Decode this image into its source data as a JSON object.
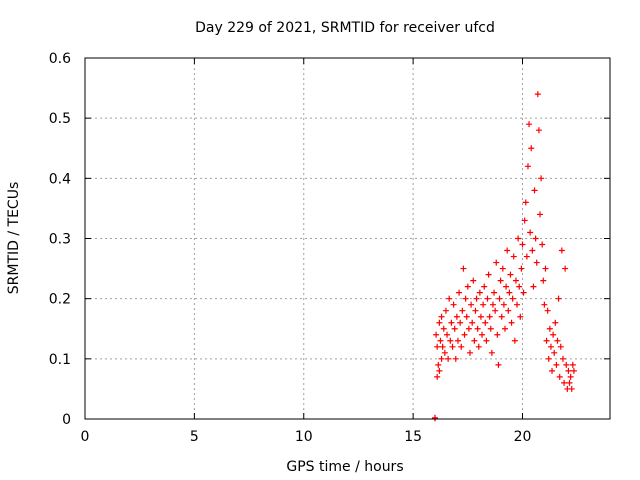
{
  "chart_data": {
    "type": "scatter",
    "title": "Day 229 of 2021, SRMTID for receiver ufcd",
    "xlabel": "GPS time / hours",
    "ylabel": "SRMTID / TECUs",
    "xlim": [
      0,
      24
    ],
    "ylim": [
      0,
      0.6
    ],
    "grid": true,
    "marker": "+",
    "x_ticks": [
      0,
      5,
      10,
      15,
      20
    ],
    "x_tick_labels": [
      "0",
      "5",
      "10",
      "15",
      "20"
    ],
    "y_ticks": [
      0,
      0.1,
      0.2,
      0.3,
      0.4,
      0.5,
      0.6
    ],
    "y_tick_labels": [
      "0",
      "0.1",
      "0.2",
      "0.3",
      "0.4",
      "0.5",
      "0.6"
    ],
    "series": [
      {
        "name": "SRMTID",
        "color": "#ff0000",
        "x": [
          16.0,
          16.0,
          16.05,
          16.1,
          16.1,
          16.15,
          16.2,
          16.2,
          16.25,
          16.3,
          16.3,
          16.35,
          16.4,
          16.45,
          16.5,
          16.55,
          16.6,
          16.65,
          16.7,
          16.75,
          16.8,
          16.85,
          16.9,
          16.95,
          17.0,
          17.05,
          17.1,
          17.15,
          17.2,
          17.25,
          17.3,
          17.35,
          17.4,
          17.45,
          17.5,
          17.55,
          17.6,
          17.65,
          17.7,
          17.75,
          17.8,
          17.85,
          17.9,
          17.95,
          18.0,
          18.05,
          18.1,
          18.15,
          18.2,
          18.25,
          18.3,
          18.35,
          18.4,
          18.45,
          18.5,
          18.55,
          18.6,
          18.65,
          18.7,
          18.75,
          18.8,
          18.85,
          18.9,
          18.95,
          19.0,
          19.05,
          19.1,
          19.15,
          19.2,
          19.25,
          19.3,
          19.35,
          19.4,
          19.45,
          19.5,
          19.55,
          19.6,
          19.65,
          19.7,
          19.75,
          19.8,
          19.85,
          19.9,
          19.95,
          20.0,
          20.05,
          20.1,
          20.15,
          20.2,
          20.25,
          20.3,
          20.35,
          20.4,
          20.45,
          20.5,
          20.55,
          20.6,
          20.65,
          20.7,
          20.75,
          20.8,
          20.85,
          20.9,
          20.95,
          21.0,
          21.05,
          21.1,
          21.15,
          21.2,
          21.25,
          21.3,
          21.35,
          21.4,
          21.45,
          21.5,
          21.55,
          21.6,
          21.65,
          21.7,
          21.75,
          21.8,
          21.85,
          21.9,
          21.95,
          22.0,
          22.05,
          22.1,
          22.15,
          22.2,
          22.25,
          22.3,
          22.35
        ],
        "y": [
          0.001,
          0.002,
          0.14,
          0.07,
          0.12,
          0.09,
          0.16,
          0.08,
          0.13,
          0.1,
          0.17,
          0.12,
          0.15,
          0.11,
          0.18,
          0.14,
          0.1,
          0.2,
          0.13,
          0.16,
          0.12,
          0.19,
          0.15,
          0.1,
          0.17,
          0.13,
          0.21,
          0.16,
          0.12,
          0.18,
          0.25,
          0.14,
          0.2,
          0.17,
          0.22,
          0.15,
          0.11,
          0.19,
          0.16,
          0.23,
          0.13,
          0.18,
          0.2,
          0.15,
          0.12,
          0.21,
          0.17,
          0.14,
          0.19,
          0.22,
          0.16,
          0.13,
          0.2,
          0.24,
          0.17,
          0.15,
          0.11,
          0.19,
          0.21,
          0.18,
          0.26,
          0.14,
          0.09,
          0.2,
          0.23,
          0.17,
          0.25,
          0.19,
          0.15,
          0.22,
          0.28,
          0.18,
          0.21,
          0.24,
          0.16,
          0.2,
          0.27,
          0.13,
          0.23,
          0.19,
          0.3,
          0.22,
          0.17,
          0.25,
          0.29,
          0.21,
          0.33,
          0.36,
          0.27,
          0.42,
          0.49,
          0.31,
          0.45,
          0.28,
          0.22,
          0.38,
          0.3,
          0.26,
          0.54,
          0.48,
          0.34,
          0.4,
          0.29,
          0.23,
          0.19,
          0.25,
          0.13,
          0.18,
          0.1,
          0.15,
          0.12,
          0.08,
          0.14,
          0.11,
          0.16,
          0.09,
          0.13,
          0.2,
          0.07,
          0.12,
          0.28,
          0.1,
          0.06,
          0.25,
          0.09,
          0.05,
          0.08,
          0.06,
          0.07,
          0.05,
          0.09,
          0.08
        ]
      }
    ]
  }
}
